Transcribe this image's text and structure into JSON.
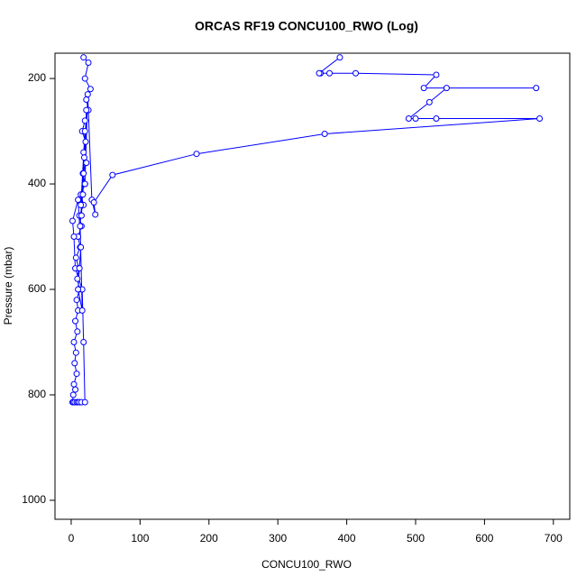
{
  "chart_data": {
    "type": "line",
    "title": "ORCAS RF19 CONCU100_RWO (Log)",
    "x_label": "CONCU100_RWO",
    "y_label": "Pressure (mbar)",
    "color": "#0000ff",
    "marker": "open-circle",
    "x": [
      18,
      25,
      20,
      28,
      22,
      25,
      20,
      16,
      21,
      18,
      22,
      17,
      20,
      14,
      18,
      12,
      15,
      10,
      13,
      7,
      11,
      9,
      12,
      8,
      10,
      6,
      9,
      4,
      7,
      5,
      8,
      4,
      6,
      3,
      2,
      3,
      5,
      8,
      10,
      12,
      15,
      20,
      18,
      16,
      6,
      4,
      2,
      10,
      14,
      12,
      10,
      16,
      13,
      18,
      15,
      20,
      14,
      19,
      17,
      22,
      20,
      24,
      30,
      35,
      33,
      60,
      182,
      368,
      680,
      530,
      500,
      490,
      520,
      545,
      675,
      512,
      530,
      413,
      375,
      362,
      360,
      390
    ],
    "values": [
      160,
      170,
      200,
      220,
      240,
      260,
      280,
      300,
      320,
      340,
      360,
      380,
      400,
      420,
      440,
      460,
      480,
      500,
      520,
      540,
      560,
      580,
      600,
      620,
      640,
      660,
      680,
      700,
      720,
      740,
      760,
      780,
      790,
      800,
      814,
      814,
      814,
      814,
      814,
      814,
      814,
      814,
      700,
      600,
      560,
      500,
      470,
      430,
      520,
      560,
      600,
      640,
      480,
      380,
      460,
      300,
      440,
      350,
      420,
      260,
      400,
      230,
      430,
      458,
      435,
      383,
      343,
      305,
      276,
      276,
      276,
      276,
      245,
      218,
      218,
      218,
      193,
      190,
      190,
      190,
      190,
      160
    ],
    "xlim": [
      -23.5,
      723.8
    ],
    "ylim": [
      1036,
      152
    ],
    "xticks": [
      0,
      100,
      200,
      300,
      400,
      500,
      600,
      700
    ],
    "yticks": [
      200,
      400,
      600,
      800,
      1000
    ]
  }
}
